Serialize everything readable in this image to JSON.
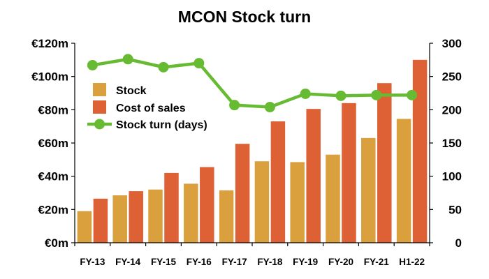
{
  "chart_data": {
    "type": "bar",
    "title": "MCON Stock turn",
    "categories": [
      "FY-13",
      "FY-14",
      "FY-15",
      "FY-16",
      "FY-17",
      "FY-18",
      "FY-19",
      "FY-20",
      "FY-21",
      "H1-22"
    ],
    "y_axis_left": {
      "range": [
        0,
        120
      ],
      "ticks": [
        0,
        20,
        40,
        60,
        80,
        100,
        120
      ],
      "tick_labels": [
        "€0m",
        "€20m",
        "€40m",
        "€60m",
        "€80m",
        "€100m",
        "€120m"
      ]
    },
    "y_axis_right": {
      "range": [
        0,
        300
      ],
      "ticks": [
        0,
        50,
        100,
        150,
        200,
        250,
        300
      ],
      "tick_labels": [
        "0",
        "50",
        "100",
        "150",
        "200",
        "250",
        "300"
      ]
    },
    "series": [
      {
        "name": "Stock",
        "type": "bar",
        "axis": "left",
        "color": "#D9A03D",
        "values": [
          19,
          28.5,
          32,
          35.5,
          31.5,
          49,
          48.5,
          53,
          63,
          74.5
        ]
      },
      {
        "name": "Cost of sales",
        "type": "bar",
        "axis": "left",
        "color": "#DD6135",
        "values": [
          26.5,
          31,
          42,
          45.5,
          59.5,
          73,
          80.5,
          84,
          96,
          110
        ]
      },
      {
        "name": "Stock turn (days)",
        "type": "line",
        "axis": "right",
        "color": "#66BB33",
        "values": [
          267,
          276,
          264,
          270,
          207,
          204,
          224,
          221,
          222,
          222
        ]
      }
    ],
    "legend": "upper-left inside plot",
    "grid": false
  }
}
